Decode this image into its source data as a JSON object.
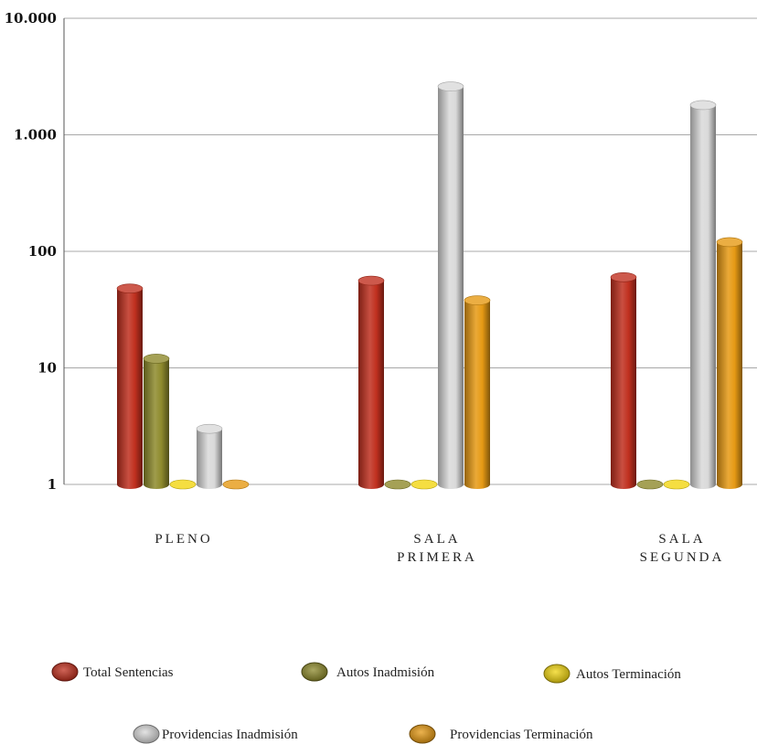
{
  "chart_data": {
    "type": "bar",
    "scale": "log",
    "ylim": [
      1,
      10000
    ],
    "yticks": [
      {
        "value": 1,
        "label": "1"
      },
      {
        "value": 10,
        "label": "10"
      },
      {
        "value": 100,
        "label": "100"
      },
      {
        "value": 1000,
        "label": "1.000"
      },
      {
        "value": 10000,
        "label": "10.000"
      }
    ],
    "grid": true,
    "legend_position": "bottom",
    "categories": [
      {
        "lines": [
          "PLENO"
        ]
      },
      {
        "lines": [
          "SALA",
          "PRIMERA"
        ]
      },
      {
        "lines": [
          "SALA",
          "SEGUNDA"
        ]
      }
    ],
    "series": [
      {
        "name": "Total Sentencias",
        "color": "#c0301f",
        "values": [
          48,
          56,
          60
        ]
      },
      {
        "name": "Autos Inadmisión",
        "color": "#8e8a2c",
        "values": [
          12,
          1,
          1
        ]
      },
      {
        "name": "Autos Terminación",
        "color": "#f2d612",
        "values": [
          1,
          1,
          1
        ]
      },
      {
        "name": "Providencias Inadmisión",
        "color": "#d9d9d9",
        "values": [
          3,
          2600,
          1800
        ]
      },
      {
        "name": "Providencias Terminación",
        "color": "#e69a14",
        "values": [
          1,
          38,
          120
        ]
      }
    ]
  }
}
